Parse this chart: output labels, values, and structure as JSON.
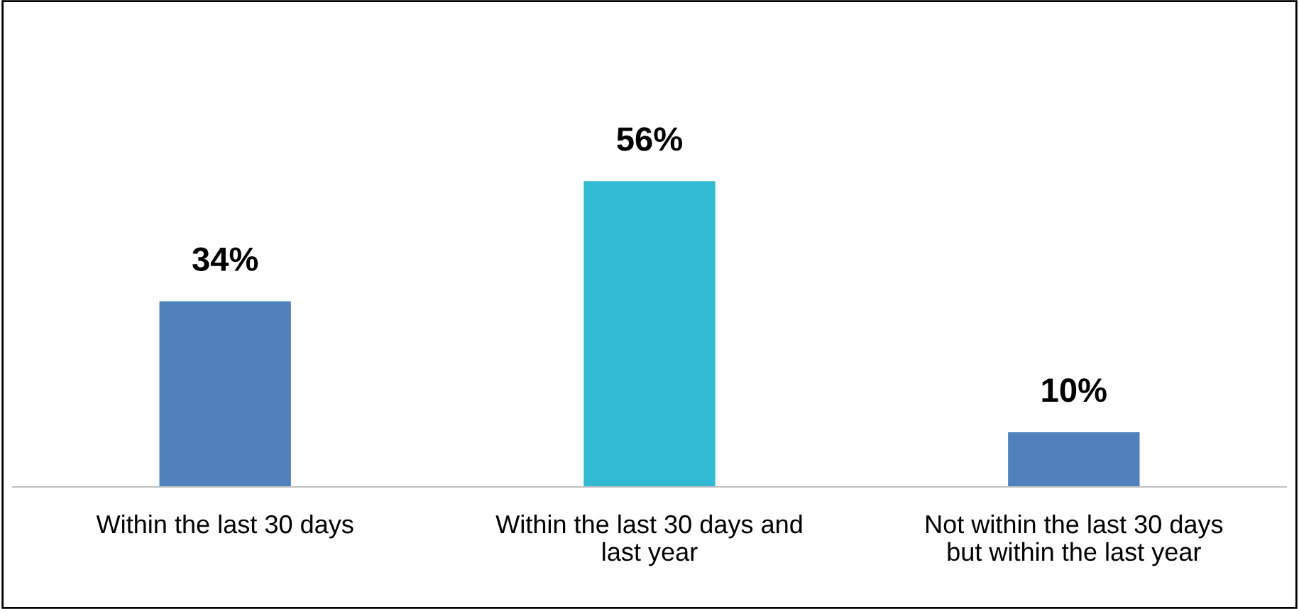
{
  "chart_data": {
    "type": "bar",
    "categories": [
      "Within the last 30 days",
      "Within the last 30 days and\nlast year",
      "Not within the last 30 days\nbut within the last year"
    ],
    "values": [
      34,
      56,
      10
    ],
    "colors": [
      "#4f81bd",
      "#31b9d4",
      "#4f81bd"
    ],
    "value_labels": [
      "34%",
      "56%",
      "10%"
    ],
    "grid": false,
    "legend": false
  }
}
